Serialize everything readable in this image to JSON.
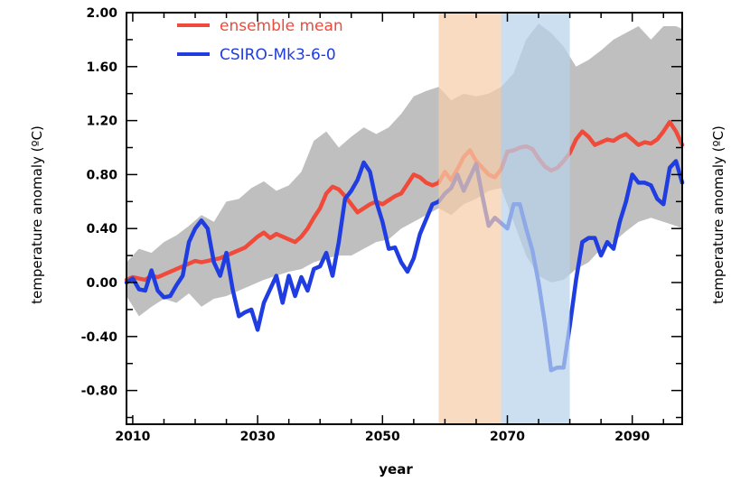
{
  "chart_data": {
    "type": "line",
    "xlabel": "year",
    "ylabel": "temperature anomaly (ºC)",
    "xlim": [
      2009,
      2098
    ],
    "ylim": [
      -1.05,
      2.0
    ],
    "x_ticks": [
      "2010",
      "2030",
      "2050",
      "2070",
      "2090"
    ],
    "y_ticks": [
      "2.00",
      "1.60",
      "1.20",
      "0.80",
      "0.40",
      "0.00",
      "-0.40",
      "-0.80"
    ],
    "y_tick_values": [
      2.0,
      1.6,
      1.2,
      0.8,
      0.4,
      0.0,
      -0.4,
      -0.8
    ],
    "x_tick_values": [
      2010,
      2030,
      2050,
      2070,
      2090
    ],
    "x_minor_step": 5,
    "y_minor_step": 0.2,
    "legend_position": "top-left",
    "highlight_bands": [
      {
        "x0": 2059,
        "x1": 2069,
        "color": "#f5cda9"
      },
      {
        "x0": 2069,
        "x1": 2080,
        "color": "#b8d2ea"
      }
    ],
    "envelope": {
      "color": "#bfbfbf",
      "x": [
        2009,
        2011,
        2013,
        2015,
        2017,
        2019,
        2021,
        2023,
        2025,
        2027,
        2029,
        2031,
        2033,
        2035,
        2037,
        2039,
        2041,
        2043,
        2045,
        2047,
        2049,
        2051,
        2053,
        2055,
        2057,
        2059,
        2061,
        2063,
        2065,
        2067,
        2069,
        2071,
        2073,
        2075,
        2077,
        2079,
        2081,
        2083,
        2085,
        2087,
        2089,
        2091,
        2093,
        2095,
        2097,
        2098
      ],
      "upper": [
        0.15,
        0.25,
        0.22,
        0.3,
        0.35,
        0.42,
        0.5,
        0.45,
        0.6,
        0.62,
        0.7,
        0.75,
        0.68,
        0.72,
        0.82,
        1.05,
        1.12,
        1.0,
        1.08,
        1.15,
        1.1,
        1.15,
        1.25,
        1.38,
        1.42,
        1.45,
        1.35,
        1.4,
        1.38,
        1.4,
        1.45,
        1.55,
        1.8,
        1.92,
        1.85,
        1.75,
        1.6,
        1.65,
        1.72,
        1.8,
        1.85,
        1.9,
        1.8,
        1.9,
        1.9,
        1.88
      ],
      "lower": [
        -0.1,
        -0.25,
        -0.18,
        -0.12,
        -0.15,
        -0.08,
        -0.18,
        -0.12,
        -0.1,
        -0.06,
        -0.02,
        0.02,
        0.05,
        0.08,
        0.1,
        0.15,
        0.18,
        0.2,
        0.2,
        0.25,
        0.3,
        0.32,
        0.4,
        0.45,
        0.5,
        0.55,
        0.5,
        0.58,
        0.62,
        0.68,
        0.7,
        0.45,
        0.2,
        0.05,
        0.0,
        0.02,
        0.1,
        0.15,
        0.25,
        0.3,
        0.38,
        0.45,
        0.48,
        0.45,
        0.42,
        0.4
      ]
    },
    "series": [
      {
        "name": "ensemble mean",
        "color": "#f04a3a",
        "x": [
          2009,
          2010,
          2011,
          2012,
          2013,
          2014,
          2015,
          2016,
          2017,
          2018,
          2019,
          2020,
          2021,
          2022,
          2023,
          2024,
          2025,
          2026,
          2027,
          2028,
          2029,
          2030,
          2031,
          2032,
          2033,
          2034,
          2035,
          2036,
          2037,
          2038,
          2039,
          2040,
          2041,
          2042,
          2043,
          2044,
          2045,
          2046,
          2047,
          2048,
          2049,
          2050,
          2051,
          2052,
          2053,
          2054,
          2055,
          2056,
          2057,
          2058,
          2059,
          2060,
          2061,
          2062,
          2063,
          2064,
          2065,
          2066,
          2067,
          2068,
          2069,
          2070,
          2071,
          2072,
          2073,
          2074,
          2075,
          2076,
          2077,
          2078,
          2079,
          2080,
          2081,
          2082,
          2083,
          2084,
          2085,
          2086,
          2087,
          2088,
          2089,
          2090,
          2091,
          2092,
          2093,
          2094,
          2095,
          2096,
          2097,
          2098
        ],
        "values": [
          0.02,
          0.04,
          0.03,
          0.02,
          0.05,
          0.04,
          0.06,
          0.08,
          0.1,
          0.12,
          0.14,
          0.16,
          0.15,
          0.16,
          0.17,
          0.18,
          0.2,
          0.22,
          0.24,
          0.26,
          0.3,
          0.34,
          0.37,
          0.33,
          0.36,
          0.34,
          0.32,
          0.3,
          0.34,
          0.4,
          0.48,
          0.55,
          0.66,
          0.71,
          0.69,
          0.64,
          0.58,
          0.52,
          0.55,
          0.58,
          0.6,
          0.58,
          0.61,
          0.64,
          0.66,
          0.73,
          0.8,
          0.78,
          0.74,
          0.72,
          0.74,
          0.82,
          0.76,
          0.84,
          0.93,
          0.98,
          0.9,
          0.85,
          0.8,
          0.78,
          0.84,
          0.97,
          0.98,
          1.0,
          1.01,
          0.99,
          0.92,
          0.86,
          0.83,
          0.85,
          0.9,
          0.96,
          1.06,
          1.12,
          1.08,
          1.02,
          1.04,
          1.06,
          1.05,
          1.08,
          1.1,
          1.06,
          1.02,
          1.04,
          1.03,
          1.06,
          1.12,
          1.19,
          1.12,
          1.02
        ]
      },
      {
        "name": "CSIRO-Mk3-6-0",
        "color": "#1f3de0",
        "x": [
          2009,
          2010,
          2011,
          2012,
          2013,
          2014,
          2015,
          2016,
          2017,
          2018,
          2019,
          2020,
          2021,
          2022,
          2023,
          2024,
          2025,
          2026,
          2027,
          2028,
          2029,
          2030,
          2031,
          2032,
          2033,
          2034,
          2035,
          2036,
          2037,
          2038,
          2039,
          2040,
          2041,
          2042,
          2043,
          2044,
          2045,
          2046,
          2047,
          2048,
          2049,
          2050,
          2051,
          2052,
          2053,
          2054,
          2055,
          2056,
          2057,
          2058,
          2059,
          2060,
          2061,
          2062,
          2063,
          2064,
          2065,
          2066,
          2067,
          2068,
          2069,
          2070,
          2071,
          2072,
          2073,
          2074,
          2075,
          2076,
          2077,
          2078,
          2079,
          2080,
          2081,
          2082,
          2083,
          2084,
          2085,
          2086,
          2087,
          2088,
          2089,
          2090,
          2091,
          2092,
          2093,
          2094,
          2095,
          2096,
          2097,
          2098
        ],
        "values": [
          0.0,
          0.03,
          -0.05,
          -0.06,
          0.09,
          -0.06,
          -0.11,
          -0.1,
          -0.02,
          0.05,
          0.3,
          0.4,
          0.46,
          0.4,
          0.15,
          0.05,
          0.22,
          -0.05,
          -0.25,
          -0.22,
          -0.2,
          -0.35,
          -0.15,
          -0.05,
          0.05,
          -0.15,
          0.05,
          -0.1,
          0.04,
          -0.06,
          0.1,
          0.12,
          0.22,
          0.05,
          0.3,
          0.62,
          0.68,
          0.76,
          0.89,
          0.82,
          0.6,
          0.45,
          0.25,
          0.26,
          0.15,
          0.08,
          0.18,
          0.36,
          0.47,
          0.58,
          0.6,
          0.66,
          0.7,
          0.8,
          0.68,
          0.78,
          0.88,
          0.64,
          0.42,
          0.48,
          0.44,
          0.4,
          0.58,
          0.58,
          0.4,
          0.24,
          0.0,
          -0.3,
          -0.65,
          -0.63,
          -0.63,
          -0.32,
          0.02,
          0.3,
          0.33,
          0.33,
          0.2,
          0.3,
          0.25,
          0.45,
          0.6,
          0.8,
          0.74,
          0.74,
          0.72,
          0.62,
          0.58,
          0.85,
          0.9,
          0.74
        ]
      }
    ]
  }
}
